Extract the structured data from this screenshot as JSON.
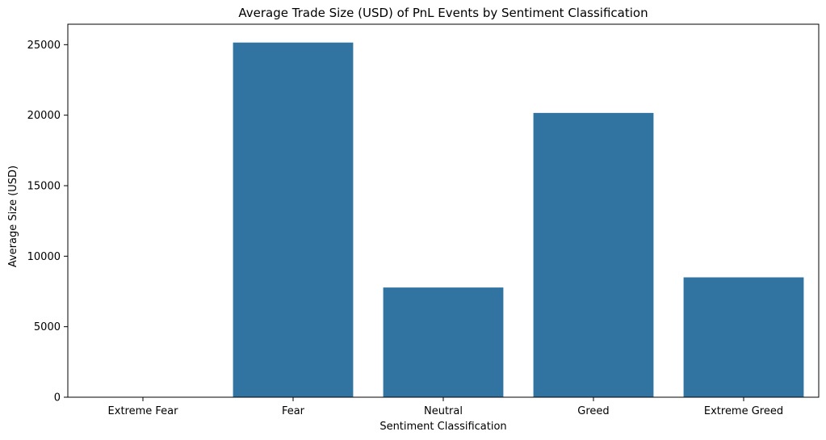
{
  "chart_data": {
    "type": "bar",
    "title": "Average Trade Size (USD) of PnL Events by Sentiment Classification",
    "xlabel": "Sentiment Classification",
    "ylabel": "Average Size (USD)",
    "categories": [
      "Extreme Fear",
      "Fear",
      "Neutral",
      "Greed",
      "Extreme Greed"
    ],
    "values": [
      0,
      25150,
      7780,
      20160,
      8500
    ],
    "ylim": [
      0,
      26450
    ],
    "yticks": [
      0,
      5000,
      10000,
      15000,
      20000,
      25000
    ],
    "ytick_labels": [
      "0",
      "5000",
      "10000",
      "15000",
      "20000",
      "25000"
    ],
    "bar_color": "#3274a1",
    "grid": false,
    "legend": "none"
  }
}
